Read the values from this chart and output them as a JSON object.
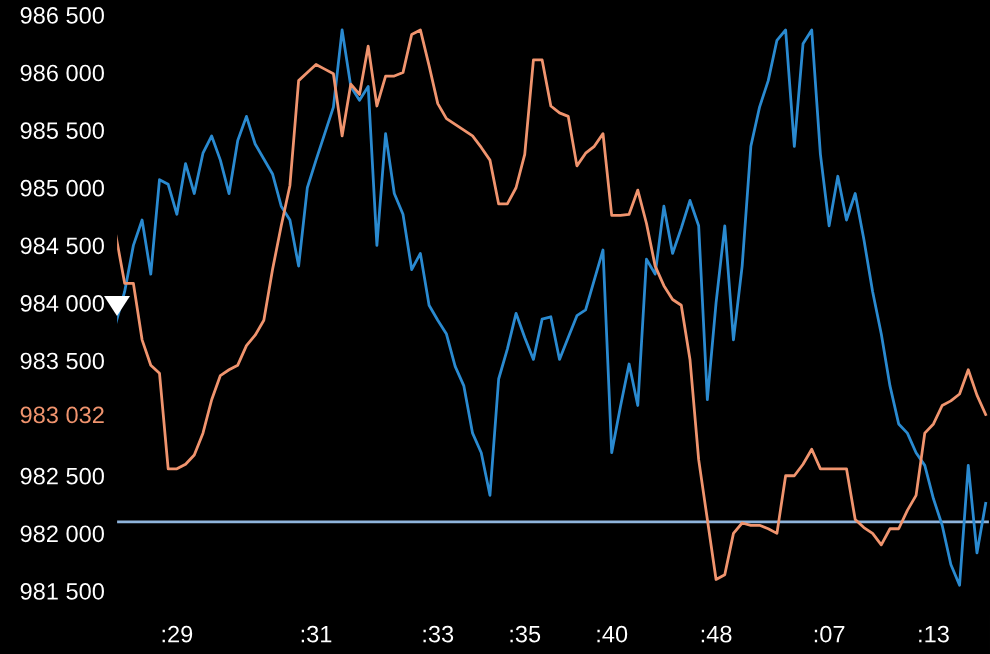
{
  "chart_data": {
    "type": "line",
    "ylim": [
      981300,
      986630
    ],
    "categories": [
      null,
      null,
      null,
      null,
      null,
      null,
      null,
      ":29",
      null,
      null,
      null,
      null,
      null,
      null,
      null,
      null,
      null,
      null,
      null,
      null,
      null,
      null,
      null,
      ":31",
      null,
      null,
      null,
      null,
      null,
      null,
      null,
      null,
      null,
      null,
      null,
      null,
      null,
      ":33",
      null,
      null,
      null,
      null,
      null,
      null,
      null,
      null,
      null,
      ":35",
      null,
      null,
      null,
      null,
      null,
      null,
      null,
      null,
      null,
      ":40",
      null,
      null,
      null,
      null,
      null,
      null,
      null,
      null,
      null,
      null,
      null,
      ":48",
      null,
      null,
      null,
      null,
      null,
      null,
      null,
      null,
      null,
      null,
      null,
      null,
      ":07",
      null,
      null,
      null,
      null,
      null,
      null,
      null,
      null,
      null,
      null,
      null,
      ":13",
      null,
      null,
      null,
      null,
      null,
      null
    ],
    "yticks": [
      {
        "value": 981500,
        "label": "981 500"
      },
      {
        "value": 982000,
        "label": "982 000"
      },
      {
        "value": 982500,
        "label": "982 500"
      },
      {
        "value": 983032,
        "label": "983 032"
      },
      {
        "value": 983500,
        "label": "983 500"
      },
      {
        "value": 984000,
        "label": "984 000"
      },
      {
        "value": 984500,
        "label": "984 500"
      },
      {
        "value": 985000,
        "label": "985 000"
      },
      {
        "value": 985500,
        "label": "985 500"
      },
      {
        "value": 986000,
        "label": "986 000"
      },
      {
        "value": 986500,
        "label": "986 500"
      }
    ],
    "grid": false,
    "legend": false,
    "marker": "none",
    "line_style": "solid",
    "ref_lines": [
      {
        "axis": "y",
        "value": 982100,
        "color": "#8fb4dc"
      }
    ],
    "series": [
      {
        "color": "#2a8ad0",
        "values": [
          983830,
          984100,
          984500,
          984720,
          984250,
          985070,
          985030,
          984770,
          985210,
          984950,
          985300,
          985450,
          985240,
          984950,
          985410,
          985620,
          985380,
          985250,
          985120,
          984840,
          984720,
          984320,
          985000,
          985240,
          985470,
          985700,
          986370,
          985880,
          985760,
          985880,
          984500,
          985470,
          984950,
          984770,
          984290,
          984430,
          983980,
          983850,
          983730,
          983450,
          983280,
          982870,
          982700,
          982330,
          983340,
          983600,
          983910,
          983700,
          983510,
          983860,
          983880,
          983510,
          983700,
          983890,
          983940,
          984200,
          984460,
          982700,
          983100,
          983470,
          983110,
          984380,
          984250,
          984840,
          984430,
          984650,
          984890,
          984670,
          983160,
          984000,
          984670,
          983680,
          984320,
          985360,
          985700,
          985930,
          986280,
          986370,
          985360,
          986250,
          986370,
          985290,
          984670,
          985100,
          984720,
          984950,
          984550,
          984100,
          983730,
          983280,
          982950,
          982870,
          982700,
          982590,
          982300,
          982070,
          981730,
          981550,
          982590,
          981830,
          982260
        ]
      },
      {
        "color": "#f0946e",
        "values": [
          984580,
          984170,
          984170,
          983680,
          983460,
          983390,
          982560,
          982560,
          982600,
          982680,
          982870,
          983160,
          983370,
          983420,
          983460,
          983630,
          983720,
          983850,
          984290,
          984670,
          985020,
          985930,
          986000,
          986070,
          986030,
          985990,
          985450,
          985900,
          985810,
          986230,
          985710,
          985970,
          985970,
          986000,
          986330,
          986370,
          986060,
          985730,
          985600,
          985550,
          985500,
          985450,
          985350,
          985240,
          984860,
          984860,
          985000,
          985290,
          986110,
          986110,
          985710,
          985650,
          985620,
          985190,
          985300,
          985360,
          985470,
          984760,
          984760,
          984770,
          984980,
          984690,
          984320,
          984150,
          984030,
          983980,
          983510,
          982640,
          982120,
          981600,
          981640,
          982000,
          982090,
          982070,
          982070,
          982040,
          982000,
          982500,
          982500,
          982600,
          982730,
          982560,
          982560,
          982560,
          982560,
          982120,
          982050,
          982000,
          981900,
          982040,
          982040,
          982200,
          982330,
          982870,
          982950,
          983110,
          983150,
          983210,
          983420,
          983200,
          983032
        ]
      }
    ]
  }
}
